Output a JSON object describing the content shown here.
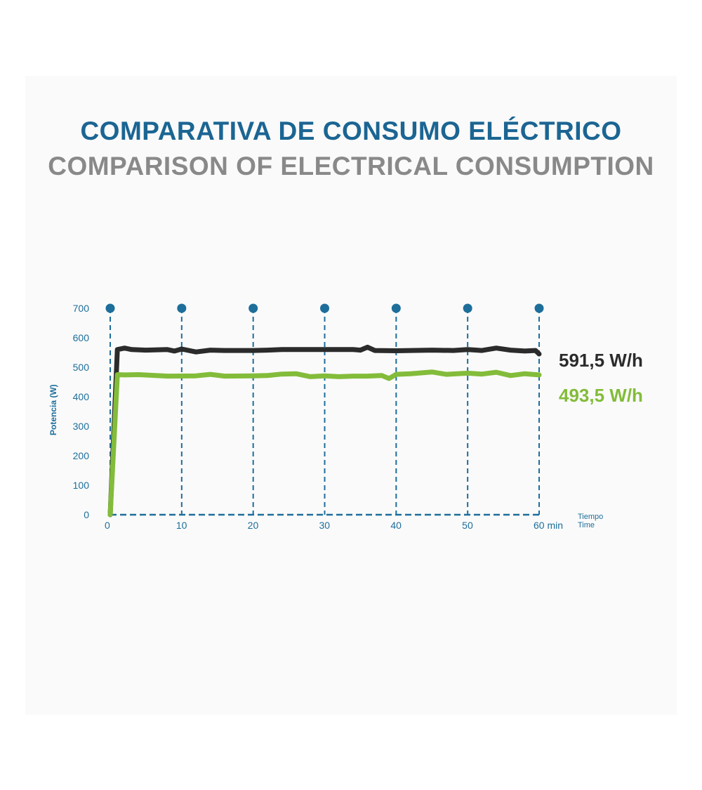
{
  "chart_data": {
    "type": "line",
    "title": "COMPARATIVA DE CONSUMO ELÉCTRICO",
    "subtitle": "COMPARISON OF ELECTRICAL CONSUMPTION",
    "ylabel": "Potencia (W)",
    "xlabel_es": "Tiempo",
    "xlabel_en": "Time",
    "x_unit": "min",
    "xlim": [
      0,
      60
    ],
    "ylim": [
      0,
      700
    ],
    "x_ticks": [
      0,
      10,
      20,
      30,
      40,
      50,
      60
    ],
    "x_tick_labels": [
      "0",
      "10",
      "20",
      "30",
      "40",
      "50",
      "60 min"
    ],
    "y_ticks": [
      0,
      100,
      200,
      300,
      400,
      500,
      600,
      700
    ],
    "grid": "vertical dashed lines at each 10 min with dot markers on top",
    "series": [
      {
        "label": "591,5 W/h",
        "color": "#2b2b2b",
        "x": [
          0,
          1,
          2,
          3,
          5,
          8,
          9,
          10,
          12,
          14,
          16,
          20,
          22,
          24,
          26,
          30,
          34,
          35,
          36,
          37,
          40,
          45,
          48,
          50,
          52,
          54,
          56,
          58,
          59.5,
          60
        ],
        "y": [
          0,
          560,
          565,
          560,
          558,
          560,
          555,
          562,
          552,
          558,
          557,
          557,
          558,
          560,
          560,
          560,
          560,
          558,
          568,
          557,
          556,
          558,
          557,
          560,
          557,
          565,
          558,
          555,
          557,
          545
        ]
      },
      {
        "label": "493,5 W/h",
        "color": "#83bc3a",
        "x": [
          0,
          1,
          2,
          4,
          8,
          12,
          14,
          16,
          20,
          22,
          24,
          26,
          28,
          30,
          32,
          34,
          36,
          38,
          39,
          40,
          42,
          45,
          47,
          50,
          52,
          54,
          56,
          58,
          60
        ],
        "y": [
          0,
          475,
          474,
          475,
          470,
          471,
          476,
          470,
          471,
          472,
          477,
          478,
          468,
          471,
          468,
          470,
          470,
          472,
          462,
          476,
          478,
          484,
          476,
          480,
          477,
          483,
          472,
          478,
          474
        ]
      }
    ]
  }
}
